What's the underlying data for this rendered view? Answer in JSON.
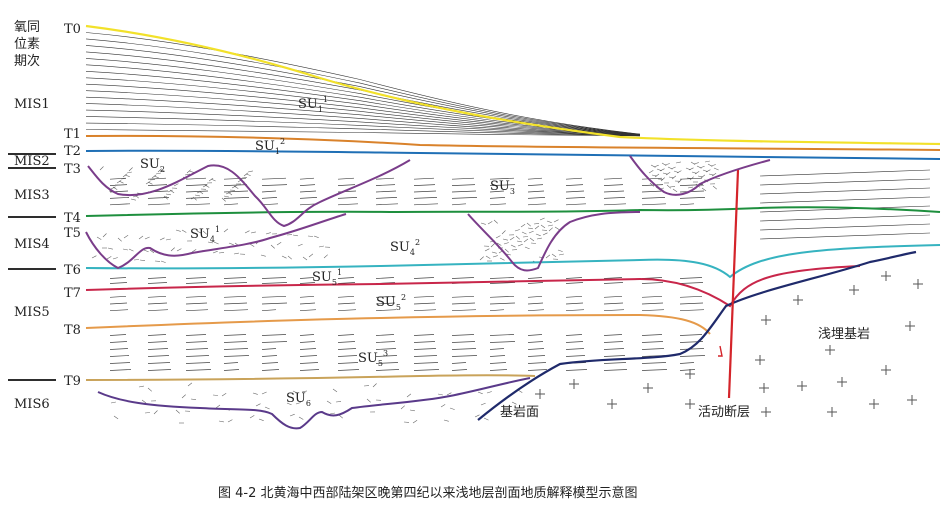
{
  "legend_header": [
    "氧同",
    "位素",
    "期次"
  ],
  "stages": [
    "MIS1",
    "MIS2",
    "MIS3",
    "MIS4",
    "MIS5",
    "MIS6"
  ],
  "horizons": [
    "T0",
    "T1",
    "T2",
    "T3",
    "T4",
    "T5",
    "T6",
    "T7",
    "T8",
    "T9"
  ],
  "units": [
    {
      "base": "SU",
      "sub": "1",
      "sup": "1"
    },
    {
      "base": "SU",
      "sub": "1",
      "sup": "2"
    },
    {
      "base": "SU",
      "sub": "2",
      "sup": ""
    },
    {
      "base": "SU",
      "sub": "3",
      "sup": ""
    },
    {
      "base": "SU",
      "sub": "4",
      "sup": "1"
    },
    {
      "base": "SU",
      "sub": "4",
      "sup": "2"
    },
    {
      "base": "SU",
      "sub": "5",
      "sup": "1"
    },
    {
      "base": "SU",
      "sub": "5",
      "sup": "2"
    },
    {
      "base": "SU",
      "sub": "5",
      "sup": "3"
    },
    {
      "base": "SU",
      "sub": "6",
      "sup": ""
    }
  ],
  "annotations": {
    "bedrock_surface": "基岩面",
    "active_fault": "活动断层",
    "buried_bedrock": "浅埋基岩"
  },
  "caption": "图 4-2  北黄海中西部陆架区晚第四纪以来浅地层剖面地质解释模型示意图",
  "colors": {
    "T0": "#f2e12a",
    "T1": "#d9822b",
    "T2": "#1f6fb5",
    "T4": "#1e8f3e",
    "T6": "#36b3c0",
    "T7": "#c8264a",
    "T8": "#e59a4a",
    "T9": "#c9a35a",
    "channel": "#7a3d8a",
    "bedrock": "#1f2a6b",
    "fault": "#d4242a"
  }
}
